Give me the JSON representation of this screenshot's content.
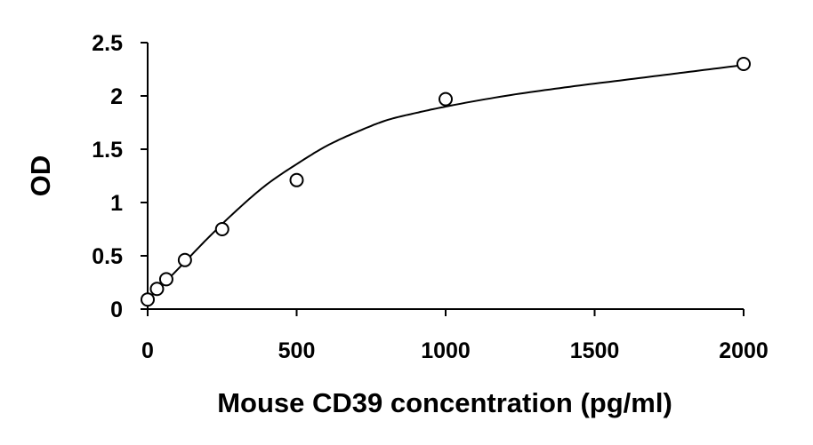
{
  "chart_data": {
    "type": "scatter",
    "title": "",
    "xlabel": "Mouse CD39 concentration (pg/ml)",
    "ylabel": "OD",
    "xlim": [
      0,
      2000
    ],
    "ylim": [
      0,
      2.5
    ],
    "x_ticks": [
      "0",
      "500",
      "1000",
      "1500",
      "2000"
    ],
    "y_ticks": [
      "0",
      "0.5",
      "1",
      "1.5",
      "2",
      "2.5"
    ],
    "grid": false,
    "legend": "none",
    "series": [
      {
        "kind": "points",
        "marker": "open-circle",
        "x": [
          0,
          31.25,
          62.5,
          125,
          250,
          500,
          1000,
          2000
        ],
        "y": [
          0.09,
          0.19,
          0.28,
          0.46,
          0.75,
          1.21,
          1.97,
          2.3
        ]
      },
      {
        "kind": "fit-curve",
        "x": [
          0,
          100,
          200,
          300,
          400,
          500,
          600,
          700,
          800,
          900,
          1000,
          1200,
          1400,
          1600,
          1800,
          2000
        ],
        "y": [
          0.09,
          0.37,
          0.66,
          0.93,
          1.17,
          1.36,
          1.53,
          1.66,
          1.77,
          1.84,
          1.9,
          2.0,
          2.08,
          2.15,
          2.22,
          2.29
        ]
      }
    ],
    "colors": {
      "marks": "#000000",
      "background": "#ffffff"
    }
  }
}
